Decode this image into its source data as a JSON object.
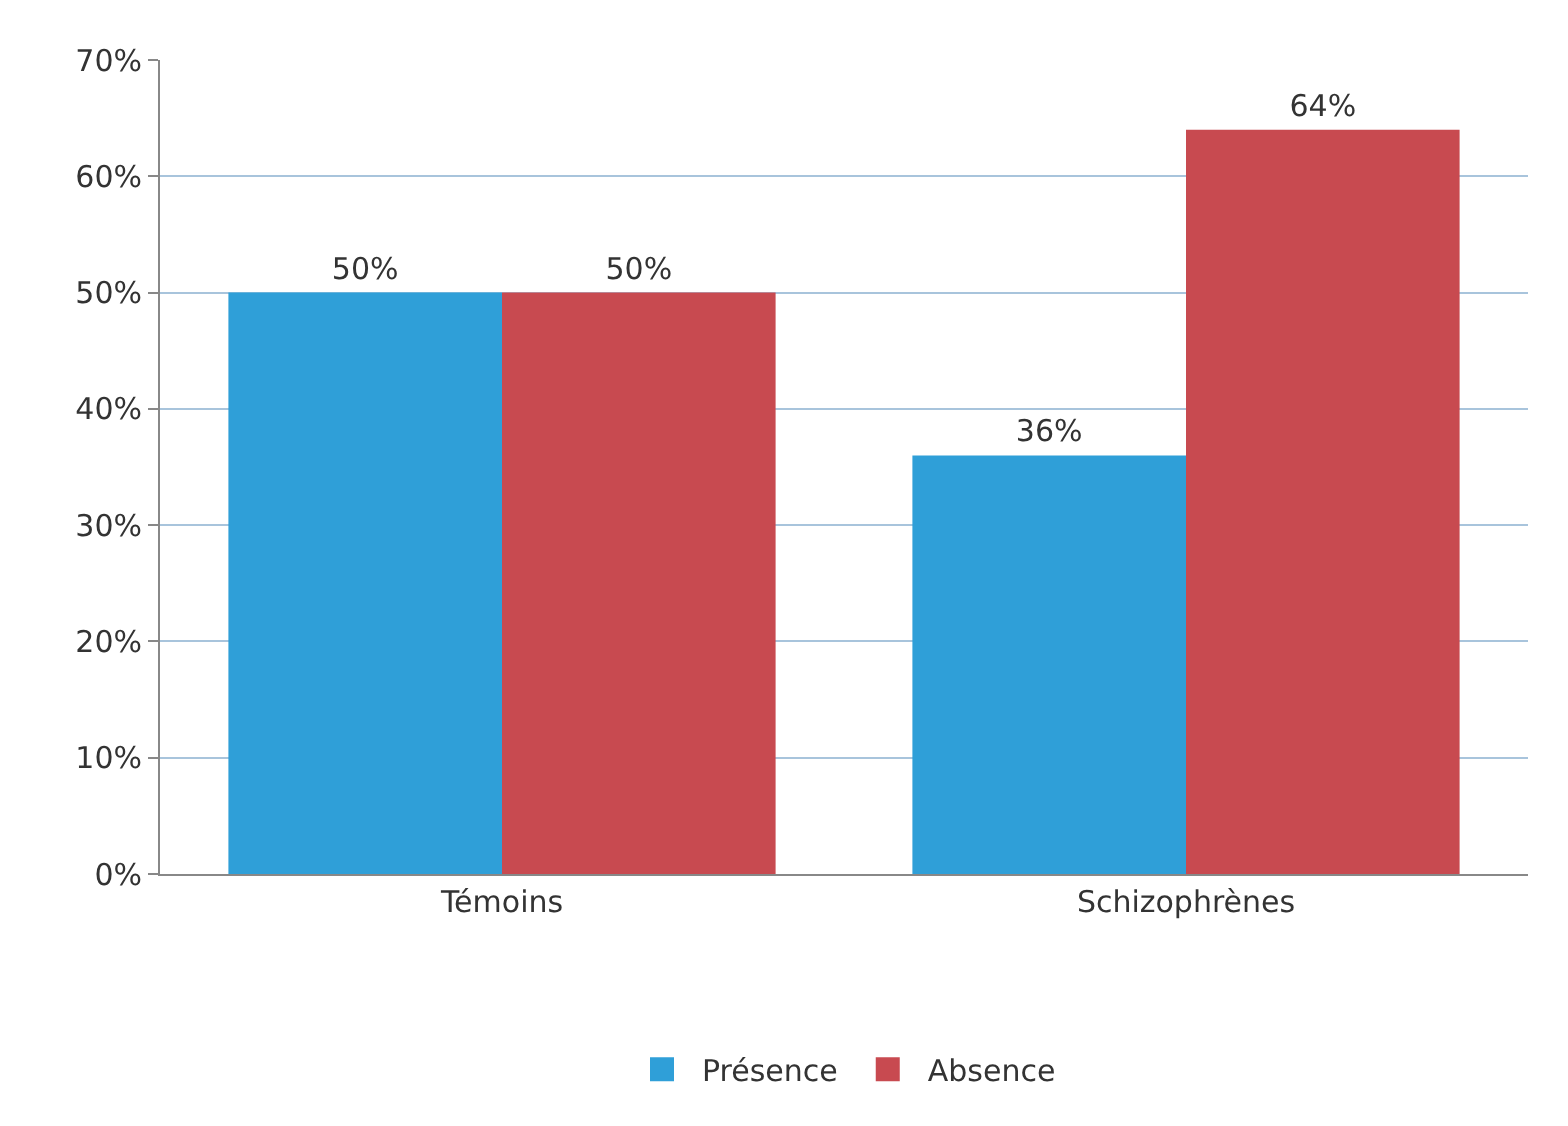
{
  "chart_data": {
    "type": "bar",
    "categories": [
      "Témoins",
      "Schizophrènes"
    ],
    "series": [
      {
        "name": "Présence",
        "color": "#2f9fd8",
        "values": [
          50,
          36
        ],
        "value_labels": [
          "50%",
          "36%"
        ]
      },
      {
        "name": "Absence",
        "color": "#c84a50",
        "values": [
          50,
          64
        ],
        "value_labels": [
          "50%",
          "64%"
        ]
      }
    ],
    "ylim": [
      0,
      70
    ],
    "yticks": [
      {
        "value": 0,
        "label": "0%"
      },
      {
        "value": 10,
        "label": "10%"
      },
      {
        "value": 20,
        "label": "20%"
      },
      {
        "value": 30,
        "label": "30%"
      },
      {
        "value": 40,
        "label": "40%"
      },
      {
        "value": 50,
        "label": "50%"
      },
      {
        "value": 60,
        "label": "60%"
      },
      {
        "value": 70,
        "label": "70%"
      }
    ],
    "grid": "y",
    "legend": "bottom"
  }
}
